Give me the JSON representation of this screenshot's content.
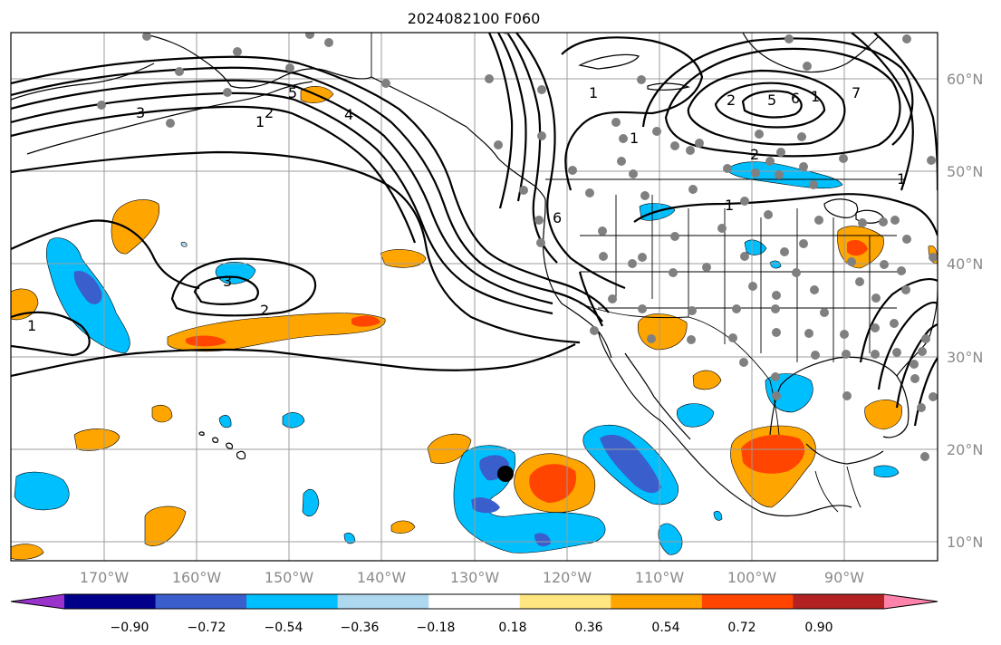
{
  "title": "2024082100 F060",
  "longitude_labels": [
    "170°W",
    "160°W",
    "150°W",
    "140°W",
    "130°W",
    "120°W",
    "110°W",
    "100°W",
    "90°W"
  ],
  "latitude_labels": [
    "60°N",
    "50°N",
    "40°N",
    "30°N",
    "20°N",
    "10°N"
  ],
  "contour_labels": [
    "3",
    "5",
    "2",
    "4",
    "1",
    "1",
    "3",
    "2",
    "1",
    "6",
    "1",
    "2",
    "5",
    "6",
    "7",
    "1",
    "2",
    "1",
    "1"
  ],
  "colorbar": {
    "tick_labels": [
      "−0.90",
      "−0.72",
      "−0.54",
      "−0.36",
      "−0.18",
      "0.18",
      "0.36",
      "0.54",
      "0.72",
      "0.90"
    ],
    "colors": [
      "#9933cc",
      "#00008b",
      "#3a5fcd",
      "#00bfff",
      "#add8f0",
      "#ffffff",
      "#ffe680",
      "#ffa500",
      "#ff4500",
      "#b22222",
      "#ff82ab"
    ]
  },
  "colors": {
    "stations": "#808080",
    "marker": "#000000",
    "grid": "#9c9c9c"
  }
}
